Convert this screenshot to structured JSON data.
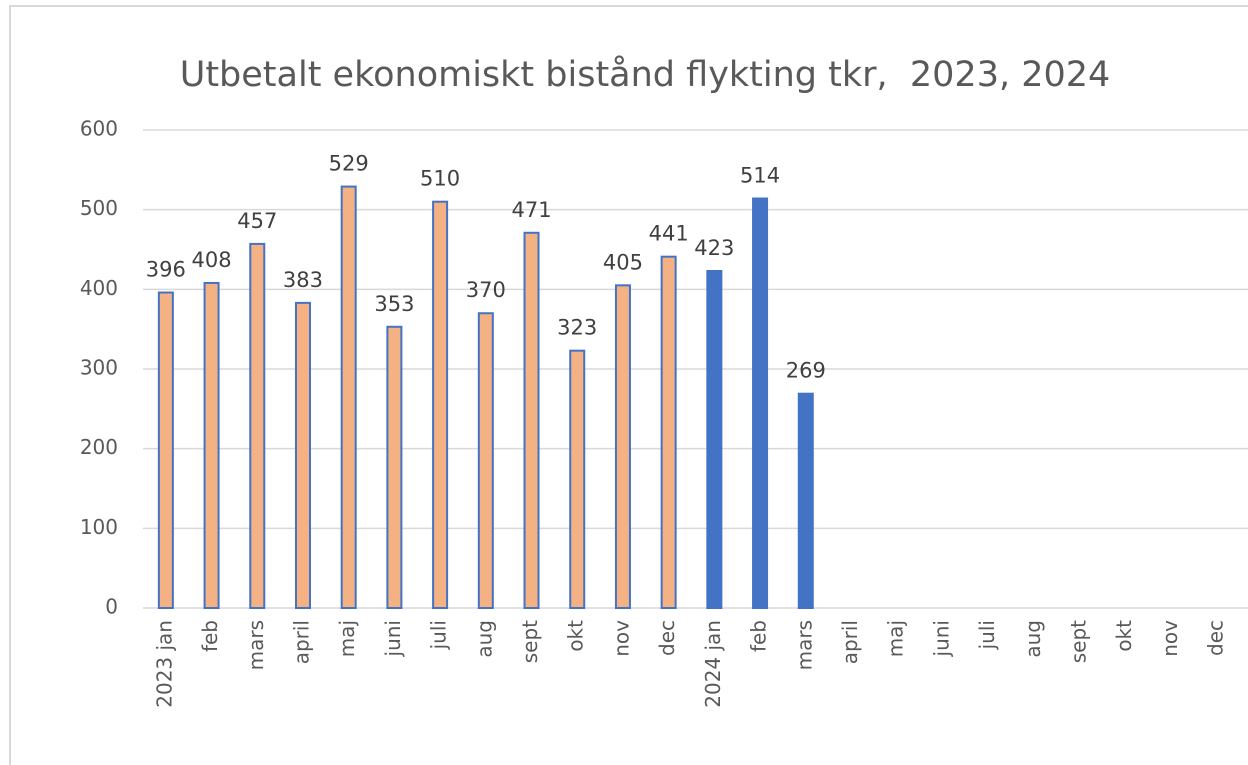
{
  "chart_data": {
    "type": "bar",
    "title": "Utbetalt ekonomiskt bistånd flykting tkr,  2023, 2024",
    "categories": [
      "2023 jan",
      "feb",
      "mars",
      "april",
      "maj",
      "juni",
      "juli",
      "aug",
      "sept",
      "okt",
      "nov",
      "dec",
      "2024 jan",
      "feb",
      "mars",
      "april",
      "maj",
      "juni",
      "juli",
      "aug",
      "sept",
      "okt",
      "nov",
      "dec"
    ],
    "values": [
      396,
      408,
      457,
      383,
      529,
      353,
      510,
      370,
      471,
      323,
      405,
      441,
      423,
      514,
      269,
      null,
      null,
      null,
      null,
      null,
      null,
      null,
      null,
      null
    ],
    "colors": [
      "#f4b183",
      "#f4b183",
      "#f4b183",
      "#f4b183",
      "#f4b183",
      "#f4b183",
      "#f4b183",
      "#f4b183",
      "#f4b183",
      "#f4b183",
      "#f4b183",
      "#f4b183",
      "#4472c4",
      "#4472c4",
      "#4472c4",
      "#4472c4",
      "#4472c4",
      "#4472c4",
      "#4472c4",
      "#4472c4",
      "#4472c4",
      "#4472c4",
      "#4472c4",
      "#4472c4"
    ],
    "edge_color": "#4472c4",
    "ylim": [
      0,
      600
    ],
    "yticks": [
      0,
      100,
      200,
      300,
      400,
      500,
      600
    ],
    "grid": true
  }
}
